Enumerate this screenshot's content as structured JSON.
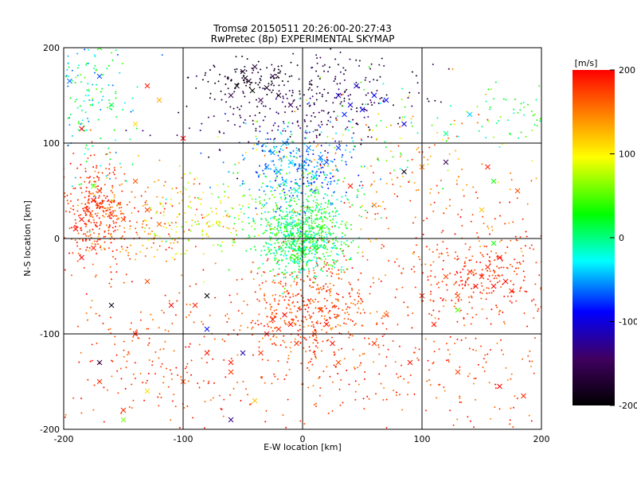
{
  "chart_data": {
    "type": "scatter",
    "title": "Tromsø 20150511 20:26:00-20:27:43",
    "subtitle": "RwPretec (8p) EXPERIMENTAL SKYMAP",
    "xlabel": "E-W location [km]",
    "ylabel": "N-S location [km]",
    "xlim": [
      -200,
      200
    ],
    "ylim": [
      -200,
      200
    ],
    "x_ticks": [
      -200,
      -100,
      0,
      100,
      200
    ],
    "y_ticks": [
      -200,
      -100,
      0,
      100,
      200
    ],
    "grid": true,
    "colorbar": {
      "label": "[m/s]",
      "range": [
        -200,
        200
      ],
      "ticks": [
        200,
        100,
        0,
        -100,
        -200
      ],
      "stops": [
        "#000000",
        "#400060",
        "#0000ff",
        "#00ffff",
        "#00ff00",
        "#ffff00",
        "#ff0000"
      ]
    },
    "marker_types": [
      "dot",
      "x"
    ],
    "series": [
      {
        "marker": "x",
        "points": [
          [
            -45,
            165,
            -190
          ],
          [
            -30,
            158,
            -180
          ],
          [
            -50,
            175,
            -185
          ],
          [
            -40,
            180,
            -170
          ],
          [
            -60,
            150,
            -160
          ],
          [
            -20,
            150,
            -175
          ],
          [
            -35,
            145,
            -150
          ],
          [
            -55,
            160,
            -195
          ],
          [
            -25,
            170,
            -165
          ],
          [
            -10,
            140,
            -155
          ],
          [
            -42,
            155,
            -200
          ],
          [
            -48,
            168,
            -185
          ],
          [
            30,
            150,
            -110
          ],
          [
            40,
            140,
            -100
          ],
          [
            50,
            135,
            -95
          ],
          [
            60,
            150,
            -90
          ],
          [
            45,
            160,
            -105
          ],
          [
            70,
            145,
            -85
          ],
          [
            35,
            130,
            -80
          ],
          [
            85,
            120,
            -100
          ],
          [
            -30,
            75,
            -60
          ],
          [
            -20,
            70,
            -50
          ],
          [
            -10,
            80,
            -40
          ],
          [
            0,
            75,
            -45
          ],
          [
            -15,
            60,
            -35
          ],
          [
            10,
            65,
            -30
          ],
          [
            -25,
            90,
            -55
          ],
          [
            5,
            95,
            -60
          ],
          [
            20,
            80,
            -70
          ],
          [
            -5,
            50,
            -20
          ],
          [
            15,
            85,
            -65
          ],
          [
            30,
            95,
            -75
          ],
          [
            -15,
            100,
            -50
          ],
          [
            -2,
            5,
            20
          ],
          [
            5,
            0,
            15
          ],
          [
            -8,
            -5,
            10
          ],
          [
            10,
            -10,
            25
          ],
          [
            -12,
            15,
            0
          ],
          [
            0,
            -15,
            30
          ],
          [
            15,
            10,
            35
          ],
          [
            -5,
            -20,
            40
          ],
          [
            -180,
            30,
            190
          ],
          [
            -175,
            40,
            200
          ],
          [
            -185,
            20,
            195
          ],
          [
            -170,
            50,
            185
          ],
          [
            -160,
            25,
            180
          ],
          [
            -190,
            10,
            200
          ],
          [
            -150,
            20,
            170
          ],
          [
            -140,
            60,
            165
          ],
          [
            -130,
            30,
            175
          ],
          [
            -120,
            15,
            160
          ],
          [
            -175,
            -10,
            190
          ],
          [
            -185,
            -20,
            200
          ],
          [
            150,
            -40,
            190
          ],
          [
            160,
            -50,
            200
          ],
          [
            155,
            -30,
            185
          ],
          [
            170,
            -45,
            195
          ],
          [
            140,
            -35,
            180
          ],
          [
            165,
            -20,
            200
          ],
          [
            130,
            -60,
            170
          ],
          [
            175,
            -55,
            185
          ],
          [
            120,
            -40,
            175
          ],
          [
            145,
            -50,
            200
          ],
          [
            -25,
            -85,
            190
          ],
          [
            -20,
            -95,
            185
          ],
          [
            -15,
            -80,
            200
          ],
          [
            -30,
            -100,
            195
          ],
          [
            -5,
            -110,
            180
          ],
          [
            20,
            -90,
            190
          ],
          [
            10,
            -100,
            175
          ],
          [
            15,
            -75,
            185
          ],
          [
            -10,
            -90,
            200
          ],
          [
            25,
            -110,
            195
          ],
          [
            -35,
            -120,
            180
          ],
          [
            30,
            -130,
            170
          ],
          [
            -140,
            -100,
            190
          ],
          [
            -110,
            -70,
            200
          ],
          [
            -80,
            -120,
            195
          ],
          [
            -60,
            -140,
            180
          ],
          [
            -100,
            -150,
            170
          ],
          [
            -170,
            -150,
            185
          ],
          [
            60,
            -110,
            180
          ],
          [
            90,
            -130,
            195
          ],
          [
            100,
            -60,
            185
          ],
          [
            70,
            -80,
            170
          ],
          [
            110,
            -90,
            190
          ],
          [
            130,
            -140,
            175
          ],
          [
            165,
            -155,
            200
          ],
          [
            185,
            -165,
            185
          ],
          [
            -150,
            -190,
            60
          ],
          [
            -130,
            -160,
            110
          ],
          [
            -60,
            -190,
            -130
          ],
          [
            -80,
            -95,
            -85
          ],
          [
            -80,
            -60,
            -200
          ],
          [
            -130,
            160,
            190
          ],
          [
            -160,
            140,
            10
          ],
          [
            -140,
            120,
            110
          ],
          [
            -170,
            170,
            -70
          ],
          [
            -195,
            165,
            -60
          ],
          [
            -170,
            200,
            30
          ],
          [
            140,
            130,
            -40
          ],
          [
            120,
            110,
            0
          ],
          [
            160,
            60,
            30
          ],
          [
            150,
            30,
            120
          ],
          [
            180,
            50,
            170
          ],
          [
            155,
            75,
            190
          ],
          [
            160,
            -5,
            30
          ],
          [
            130,
            -75,
            50
          ],
          [
            120,
            80,
            -150
          ],
          [
            100,
            75,
            150
          ],
          [
            85,
            70,
            -190
          ],
          [
            60,
            35,
            150
          ],
          [
            40,
            55,
            190
          ],
          [
            -60,
            -130,
            190
          ],
          [
            -150,
            -180,
            185
          ],
          [
            -170,
            -130,
            -160
          ],
          [
            -50,
            -120,
            -120
          ],
          [
            -40,
            -170,
            120
          ],
          [
            -90,
            -70,
            190
          ],
          [
            -130,
            -45,
            170
          ],
          [
            -160,
            -70,
            -180
          ],
          [
            -100,
            105,
            200
          ],
          [
            -120,
            145,
            130
          ],
          [
            -175,
            55,
            60
          ],
          [
            -185,
            115,
            200
          ]
        ]
      },
      {
        "marker": "dot",
        "clusters": [
          {
            "center": [
              0,
              0
            ],
            "spread": [
              18,
              20
            ],
            "count": 650,
            "value_range": [
              -40,
              60
            ]
          },
          {
            "center": [
              -5,
              75
            ],
            "spread": [
              25,
              22
            ],
            "count": 300,
            "value_range": [
              -90,
              -30
            ]
          },
          {
            "center": [
              -10,
              130
            ],
            "spread": [
              45,
              20
            ],
            "count": 180,
            "value_range": [
              -190,
              -120
            ]
          },
          {
            "center": [
              -40,
              170
            ],
            "spread": [
              25,
              12
            ],
            "count": 90,
            "value_range": [
              -200,
              -170
            ]
          },
          {
            "center": [
              40,
              160
            ],
            "spread": [
              40,
              25
            ],
            "count": 120,
            "value_range": [
              -200,
              -130
            ]
          },
          {
            "center": [
              5,
              -75
            ],
            "spread": [
              30,
              30
            ],
            "count": 450,
            "value_range": [
              140,
              200
            ]
          },
          {
            "center": [
              -175,
              30
            ],
            "spread": [
              15,
              25
            ],
            "count": 260,
            "value_range": [
              160,
              200
            ]
          },
          {
            "center": [
              -150,
              20
            ],
            "spread": [
              30,
              30
            ],
            "count": 200,
            "value_range": [
              120,
              200
            ]
          },
          {
            "center": [
              -90,
              20
            ],
            "spread": [
              30,
              20
            ],
            "count": 140,
            "value_range": [
              60,
              140
            ]
          },
          {
            "center": [
              150,
              -40
            ],
            "spread": [
              35,
              25
            ],
            "count": 280,
            "value_range": [
              160,
              200
            ]
          },
          {
            "center": [
              100,
              40
            ],
            "spread": [
              60,
              40
            ],
            "count": 180,
            "value_range": [
              120,
              200
            ]
          },
          {
            "center": [
              -180,
              140
            ],
            "spread": [
              20,
              45
            ],
            "count": 180,
            "value_range": [
              -70,
              60
            ]
          },
          {
            "center": [
              -10,
              30
            ],
            "spread": [
              30,
              30
            ],
            "count": 250,
            "value_range": [
              -20,
              70
            ]
          },
          {
            "center": [
              0,
              -140
            ],
            "spread": [
              110,
              40
            ],
            "count": 220,
            "value_range": [
              150,
              200
            ]
          },
          {
            "center": [
              -140,
              -120
            ],
            "spread": [
              50,
              50
            ],
            "count": 160,
            "value_range": [
              150,
              200
            ]
          },
          {
            "center": [
              120,
              -130
            ],
            "spread": [
              60,
              50
            ],
            "count": 160,
            "value_range": [
              140,
              200
            ]
          },
          {
            "center": [
              175,
              130
            ],
            "spread": [
              20,
              15
            ],
            "count": 50,
            "value_range": [
              -20,
              70
            ]
          },
          {
            "center": [
              60,
              100
            ],
            "spread": [
              60,
              30
            ],
            "count": 120,
            "value_range": [
              -40,
              150
            ]
          }
        ]
      }
    ]
  }
}
